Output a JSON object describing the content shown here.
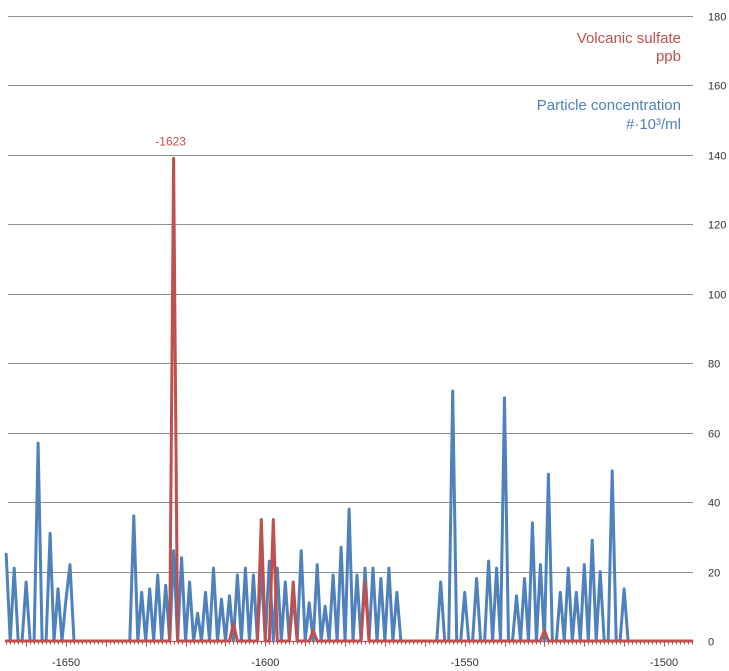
{
  "chart_data": {
    "type": "line",
    "title": "",
    "xlabel": "",
    "ylabel": "",
    "xlim": [
      -1665,
      -1493
    ],
    "ylim": [
      0,
      180
    ],
    "x_ticks": [
      -1650,
      -1600,
      -1550,
      -1500
    ],
    "y_ticks": [
      0,
      20,
      40,
      60,
      80,
      100,
      120,
      140,
      160,
      180
    ],
    "grid": "horizontal",
    "legend_placement": "top-right",
    "series": [
      {
        "name_lines": [
          "Volcanic sulfate",
          "ppb"
        ],
        "color": "#C0504D",
        "points": [
          [
            -1665,
            0
          ],
          [
            -1624,
            0
          ],
          [
            -1623,
            139
          ],
          [
            -1622,
            0
          ],
          [
            -1609,
            0
          ],
          [
            -1608,
            5
          ],
          [
            -1607,
            0
          ],
          [
            -1602,
            0
          ],
          [
            -1601,
            35
          ],
          [
            -1600,
            0
          ],
          [
            -1599,
            0
          ],
          [
            -1598,
            35
          ],
          [
            -1597,
            0
          ],
          [
            -1594,
            0
          ],
          [
            -1593,
            17
          ],
          [
            -1592,
            0
          ],
          [
            -1589,
            0
          ],
          [
            -1588,
            3
          ],
          [
            -1587,
            0
          ],
          [
            -1576,
            0
          ],
          [
            -1575,
            17
          ],
          [
            -1574,
            0
          ],
          [
            -1531,
            0
          ],
          [
            -1530,
            3
          ],
          [
            -1529,
            0
          ],
          [
            -1493,
            0
          ]
        ]
      },
      {
        "name_lines": [
          "Particle concentration",
          "#·10³/ml"
        ],
        "color": "#4F81BD",
        "points": [
          [
            -1665,
            25
          ],
          [
            -1664,
            0
          ],
          [
            -1663,
            21
          ],
          [
            -1662,
            0
          ],
          [
            -1661,
            0
          ],
          [
            -1660,
            17
          ],
          [
            -1659,
            0
          ],
          [
            -1658,
            0
          ],
          [
            -1657,
            57
          ],
          [
            -1656,
            0
          ],
          [
            -1655,
            0
          ],
          [
            -1654,
            31
          ],
          [
            -1653,
            0
          ],
          [
            -1652,
            15
          ],
          [
            -1651,
            0
          ],
          [
            -1650,
            12
          ],
          [
            -1649,
            22
          ],
          [
            -1648,
            0
          ],
          [
            -1634,
            0
          ],
          [
            -1633,
            36
          ],
          [
            -1632,
            0
          ],
          [
            -1631,
            14
          ],
          [
            -1630,
            0
          ],
          [
            -1629,
            15
          ],
          [
            -1628,
            0
          ],
          [
            -1627,
            19
          ],
          [
            -1626,
            0
          ],
          [
            -1625,
            16
          ],
          [
            -1624,
            0
          ],
          [
            -1623,
            26
          ],
          [
            -1622,
            0
          ],
          [
            -1621,
            24
          ],
          [
            -1620,
            0
          ],
          [
            -1619,
            17
          ],
          [
            -1618,
            0
          ],
          [
            -1617,
            8
          ],
          [
            -1616,
            0
          ],
          [
            -1615,
            14
          ],
          [
            -1614,
            0
          ],
          [
            -1613,
            21
          ],
          [
            -1612,
            0
          ],
          [
            -1611,
            12
          ],
          [
            -1610,
            0
          ],
          [
            -1609,
            13
          ],
          [
            -1608,
            0
          ],
          [
            -1607,
            19
          ],
          [
            -1606,
            0
          ],
          [
            -1605,
            21
          ],
          [
            -1604,
            0
          ],
          [
            -1603,
            19
          ],
          [
            -1602,
            0
          ],
          [
            -1601,
            21
          ],
          [
            -1600,
            0
          ],
          [
            -1599,
            23
          ],
          [
            -1598,
            0
          ],
          [
            -1597,
            21
          ],
          [
            -1596,
            0
          ],
          [
            -1595,
            17
          ],
          [
            -1594,
            0
          ],
          [
            -1593,
            13
          ],
          [
            -1592,
            0
          ],
          [
            -1591,
            26
          ],
          [
            -1590,
            0
          ],
          [
            -1589,
            11
          ],
          [
            -1588,
            0
          ],
          [
            -1587,
            22
          ],
          [
            -1586,
            0
          ],
          [
            -1585,
            10
          ],
          [
            -1584,
            0
          ],
          [
            -1583,
            19
          ],
          [
            -1582,
            0
          ],
          [
            -1581,
            27
          ],
          [
            -1580,
            0
          ],
          [
            -1579,
            38
          ],
          [
            -1578,
            0
          ],
          [
            -1577,
            19
          ],
          [
            -1576,
            0
          ],
          [
            -1575,
            21
          ],
          [
            -1574,
            0
          ],
          [
            -1573,
            21
          ],
          [
            -1572,
            0
          ],
          [
            -1571,
            18
          ],
          [
            -1570,
            0
          ],
          [
            -1569,
            21
          ],
          [
            -1568,
            0
          ],
          [
            -1567,
            14
          ],
          [
            -1566,
            0
          ],
          [
            -1557,
            0
          ],
          [
            -1556,
            17
          ],
          [
            -1555,
            0
          ],
          [
            -1554,
            0
          ],
          [
            -1553,
            72
          ],
          [
            -1552,
            0
          ],
          [
            -1551,
            0
          ],
          [
            -1550,
            14
          ],
          [
            -1549,
            0
          ],
          [
            -1548,
            0
          ],
          [
            -1547,
            18
          ],
          [
            -1546,
            0
          ],
          [
            -1545,
            0
          ],
          [
            -1544,
            23
          ],
          [
            -1543,
            0
          ],
          [
            -1542,
            21
          ],
          [
            -1541,
            0
          ],
          [
            -1540,
            70
          ],
          [
            -1539,
            0
          ],
          [
            -1538,
            0
          ],
          [
            -1537,
            13
          ],
          [
            -1536,
            0
          ],
          [
            -1535,
            18
          ],
          [
            -1534,
            0
          ],
          [
            -1533,
            34
          ],
          [
            -1532,
            0
          ],
          [
            -1531,
            22
          ],
          [
            -1530,
            0
          ],
          [
            -1529,
            48
          ],
          [
            -1528,
            0
          ],
          [
            -1527,
            0
          ],
          [
            -1526,
            14
          ],
          [
            -1525,
            0
          ],
          [
            -1524,
            21
          ],
          [
            -1523,
            0
          ],
          [
            -1522,
            14
          ],
          [
            -1521,
            0
          ],
          [
            -1520,
            22
          ],
          [
            -1519,
            0
          ],
          [
            -1518,
            29
          ],
          [
            -1517,
            0
          ],
          [
            -1516,
            20
          ],
          [
            -1515,
            0
          ],
          [
            -1514,
            0
          ],
          [
            -1513,
            49
          ],
          [
            -1512,
            0
          ],
          [
            -1511,
            0
          ],
          [
            -1510,
            15
          ],
          [
            -1509,
            0
          ]
        ]
      }
    ],
    "annotations": [
      {
        "text": "-1623",
        "x": -1623,
        "y": 139,
        "color": "#C0504D"
      }
    ]
  }
}
